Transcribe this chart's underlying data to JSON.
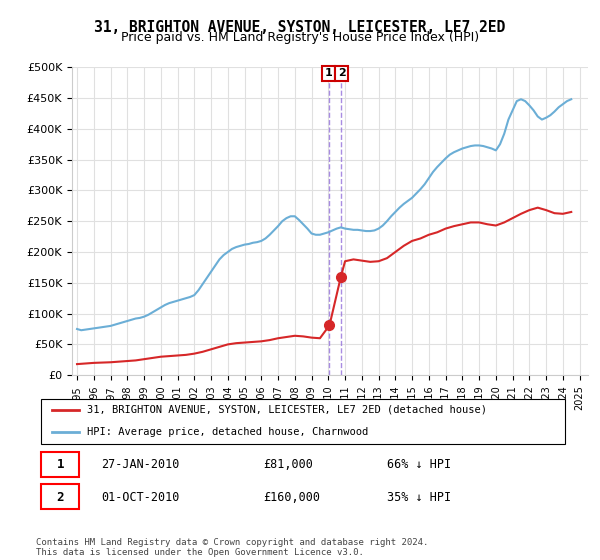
{
  "title": "31, BRIGHTON AVENUE, SYSTON, LEICESTER, LE7 2ED",
  "subtitle": "Price paid vs. HM Land Registry's House Price Index (HPI)",
  "title_fontsize": 11,
  "subtitle_fontsize": 9.5,
  "ylabel_ticks": [
    "£0",
    "£50K",
    "£100K",
    "£150K",
    "£200K",
    "£250K",
    "£300K",
    "£350K",
    "£400K",
    "£450K",
    "£500K"
  ],
  "ytick_values": [
    0,
    50000,
    100000,
    150000,
    200000,
    250000,
    300000,
    350000,
    400000,
    450000,
    500000
  ],
  "ylim": [
    0,
    500000
  ],
  "xlim_start": 1995.0,
  "xlim_end": 2025.5,
  "xtick_years": [
    1995,
    1996,
    1997,
    1998,
    1999,
    2000,
    2001,
    2002,
    2003,
    2004,
    2005,
    2006,
    2007,
    2008,
    2009,
    2010,
    2011,
    2012,
    2013,
    2014,
    2015,
    2016,
    2017,
    2018,
    2019,
    2020,
    2021,
    2022,
    2023,
    2024,
    2025
  ],
  "hpi_color": "#6baed6",
  "price_color": "#d62728",
  "vline_color": "#9370db",
  "background_color": "#ffffff",
  "grid_color": "#e0e0e0",
  "transaction1": {
    "label": "1",
    "date": "27-JAN-2010",
    "price": "£81,000",
    "hpi_pct": "66% ↓ HPI",
    "x_year": 2010.07
  },
  "transaction2": {
    "label": "2",
    "date": "01-OCT-2010",
    "price": "£160,000",
    "hpi_pct": "35% ↓ HPI",
    "x_year": 2010.75
  },
  "legend_label_red": "31, BRIGHTON AVENUE, SYSTON, LEICESTER, LE7 2ED (detached house)",
  "legend_label_blue": "HPI: Average price, detached house, Charnwood",
  "footer": "Contains HM Land Registry data © Crown copyright and database right 2024.\nThis data is licensed under the Open Government Licence v3.0.",
  "hpi_x": [
    1995.0,
    1995.25,
    1995.5,
    1995.75,
    1996.0,
    1996.25,
    1996.5,
    1996.75,
    1997.0,
    1997.25,
    1997.5,
    1997.75,
    1998.0,
    1998.25,
    1998.5,
    1998.75,
    1999.0,
    1999.25,
    1999.5,
    1999.75,
    2000.0,
    2000.25,
    2000.5,
    2000.75,
    2001.0,
    2001.25,
    2001.5,
    2001.75,
    2002.0,
    2002.25,
    2002.5,
    2002.75,
    2003.0,
    2003.25,
    2003.5,
    2003.75,
    2004.0,
    2004.25,
    2004.5,
    2004.75,
    2005.0,
    2005.25,
    2005.5,
    2005.75,
    2006.0,
    2006.25,
    2006.5,
    2006.75,
    2007.0,
    2007.25,
    2007.5,
    2007.75,
    2008.0,
    2008.25,
    2008.5,
    2008.75,
    2009.0,
    2009.25,
    2009.5,
    2009.75,
    2010.0,
    2010.25,
    2010.5,
    2010.75,
    2011.0,
    2011.25,
    2011.5,
    2011.75,
    2012.0,
    2012.25,
    2012.5,
    2012.75,
    2013.0,
    2013.25,
    2013.5,
    2013.75,
    2014.0,
    2014.25,
    2014.5,
    2014.75,
    2015.0,
    2015.25,
    2015.5,
    2015.75,
    2016.0,
    2016.25,
    2016.5,
    2016.75,
    2017.0,
    2017.25,
    2017.5,
    2017.75,
    2018.0,
    2018.25,
    2018.5,
    2018.75,
    2019.0,
    2019.25,
    2019.5,
    2019.75,
    2020.0,
    2020.25,
    2020.5,
    2020.75,
    2021.0,
    2021.25,
    2021.5,
    2021.75,
    2022.0,
    2022.25,
    2022.5,
    2022.75,
    2023.0,
    2023.25,
    2023.5,
    2023.75,
    2024.0,
    2024.25,
    2024.5
  ],
  "hpi_y": [
    75000,
    73000,
    74000,
    75000,
    76000,
    77000,
    78000,
    79000,
    80000,
    82000,
    84000,
    86000,
    88000,
    90000,
    92000,
    93000,
    95000,
    98000,
    102000,
    106000,
    110000,
    114000,
    117000,
    119000,
    121000,
    123000,
    125000,
    127000,
    130000,
    138000,
    148000,
    158000,
    168000,
    178000,
    188000,
    195000,
    200000,
    205000,
    208000,
    210000,
    212000,
    213000,
    215000,
    216000,
    218000,
    222000,
    228000,
    235000,
    242000,
    250000,
    255000,
    258000,
    258000,
    252000,
    245000,
    238000,
    230000,
    228000,
    228000,
    230000,
    232000,
    235000,
    238000,
    240000,
    238000,
    237000,
    236000,
    236000,
    235000,
    234000,
    234000,
    235000,
    238000,
    243000,
    250000,
    258000,
    265000,
    272000,
    278000,
    283000,
    288000,
    295000,
    302000,
    310000,
    320000,
    330000,
    338000,
    345000,
    352000,
    358000,
    362000,
    365000,
    368000,
    370000,
    372000,
    373000,
    373000,
    372000,
    370000,
    368000,
    365000,
    375000,
    392000,
    415000,
    430000,
    445000,
    448000,
    445000,
    438000,
    430000,
    420000,
    415000,
    418000,
    422000,
    428000,
    435000,
    440000,
    445000,
    448000
  ],
  "price_x": [
    1995.0,
    1995.5,
    1996.0,
    1996.5,
    1997.0,
    1997.5,
    1998.0,
    1998.5,
    1999.0,
    1999.5,
    2000.0,
    2000.5,
    2001.0,
    2001.5,
    2002.0,
    2002.5,
    2003.0,
    2003.5,
    2004.0,
    2004.5,
    2005.0,
    2005.5,
    2006.0,
    2006.5,
    2007.0,
    2007.5,
    2008.0,
    2008.5,
    2009.0,
    2009.5,
    2010.07,
    2010.75,
    2011.0,
    2011.5,
    2012.0,
    2012.5,
    2013.0,
    2013.5,
    2014.0,
    2014.5,
    2015.0,
    2015.5,
    2016.0,
    2016.5,
    2017.0,
    2017.5,
    2018.0,
    2018.5,
    2019.0,
    2019.5,
    2020.0,
    2020.5,
    2021.0,
    2021.5,
    2022.0,
    2022.5,
    2023.0,
    2023.5,
    2024.0,
    2024.5
  ],
  "price_y": [
    18000,
    19000,
    20000,
    20500,
    21000,
    22000,
    23000,
    24000,
    26000,
    28000,
    30000,
    31000,
    32000,
    33000,
    35000,
    38000,
    42000,
    46000,
    50000,
    52000,
    53000,
    54000,
    55000,
    57000,
    60000,
    62000,
    64000,
    63000,
    61000,
    60000,
    81000,
    160000,
    185000,
    188000,
    186000,
    184000,
    185000,
    190000,
    200000,
    210000,
    218000,
    222000,
    228000,
    232000,
    238000,
    242000,
    245000,
    248000,
    248000,
    245000,
    243000,
    248000,
    255000,
    262000,
    268000,
    272000,
    268000,
    263000,
    262000,
    265000
  ]
}
